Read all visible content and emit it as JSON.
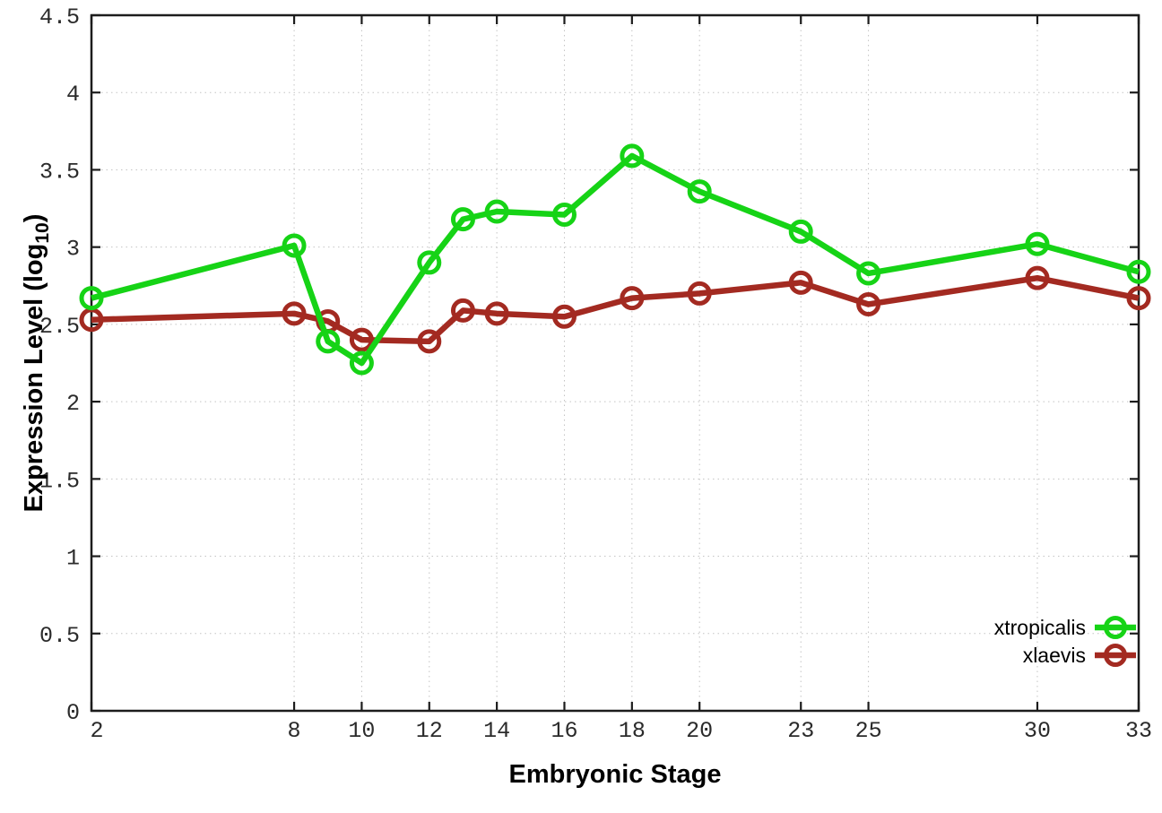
{
  "chart_data": {
    "type": "line",
    "xlabel": "Embryonic Stage",
    "ylabel": "Expression Level (log10)",
    "ylabel_parts": {
      "pre": "Expression Level (log",
      "sub": "10",
      "post": ")"
    },
    "xlim": [
      2,
      33
    ],
    "ylim": [
      0,
      4.5
    ],
    "grid": true,
    "legend_position": "bottom-right",
    "x_ticks": [
      2,
      8,
      10,
      12,
      14,
      16,
      18,
      20,
      23,
      25,
      30,
      33
    ],
    "x_tick_labels": [
      "2",
      "8",
      "10",
      "12",
      "14",
      "16",
      "18",
      "20",
      "23",
      "25",
      "30",
      "33"
    ],
    "y_ticks": [
      0,
      0.5,
      1,
      1.5,
      2,
      2.5,
      3,
      3.5,
      4,
      4.5
    ],
    "y_tick_labels": [
      "0",
      "0.5",
      "1",
      "1.5",
      "2",
      "2.5",
      "3",
      "3.5",
      "4",
      "4.5"
    ],
    "x": [
      2,
      8,
      9,
      10,
      12,
      13,
      14,
      16,
      18,
      20,
      23,
      25,
      30,
      33
    ],
    "series": [
      {
        "name": "xtropicalis",
        "color": "#16d316",
        "values": [
          2.67,
          3.01,
          2.39,
          2.25,
          2.9,
          3.18,
          3.23,
          3.21,
          3.59,
          3.36,
          3.1,
          2.83,
          3.02,
          2.84
        ]
      },
      {
        "name": "xlaevis",
        "color": "#a32a21",
        "values": [
          2.53,
          2.57,
          2.52,
          2.4,
          2.39,
          2.59,
          2.57,
          2.55,
          2.67,
          2.7,
          2.77,
          2.63,
          2.8,
          2.67
        ]
      }
    ]
  },
  "colors": {
    "grid": "#c4c4c4",
    "axis": "#1c1c1c",
    "tick_label": "#2b2b2b"
  }
}
